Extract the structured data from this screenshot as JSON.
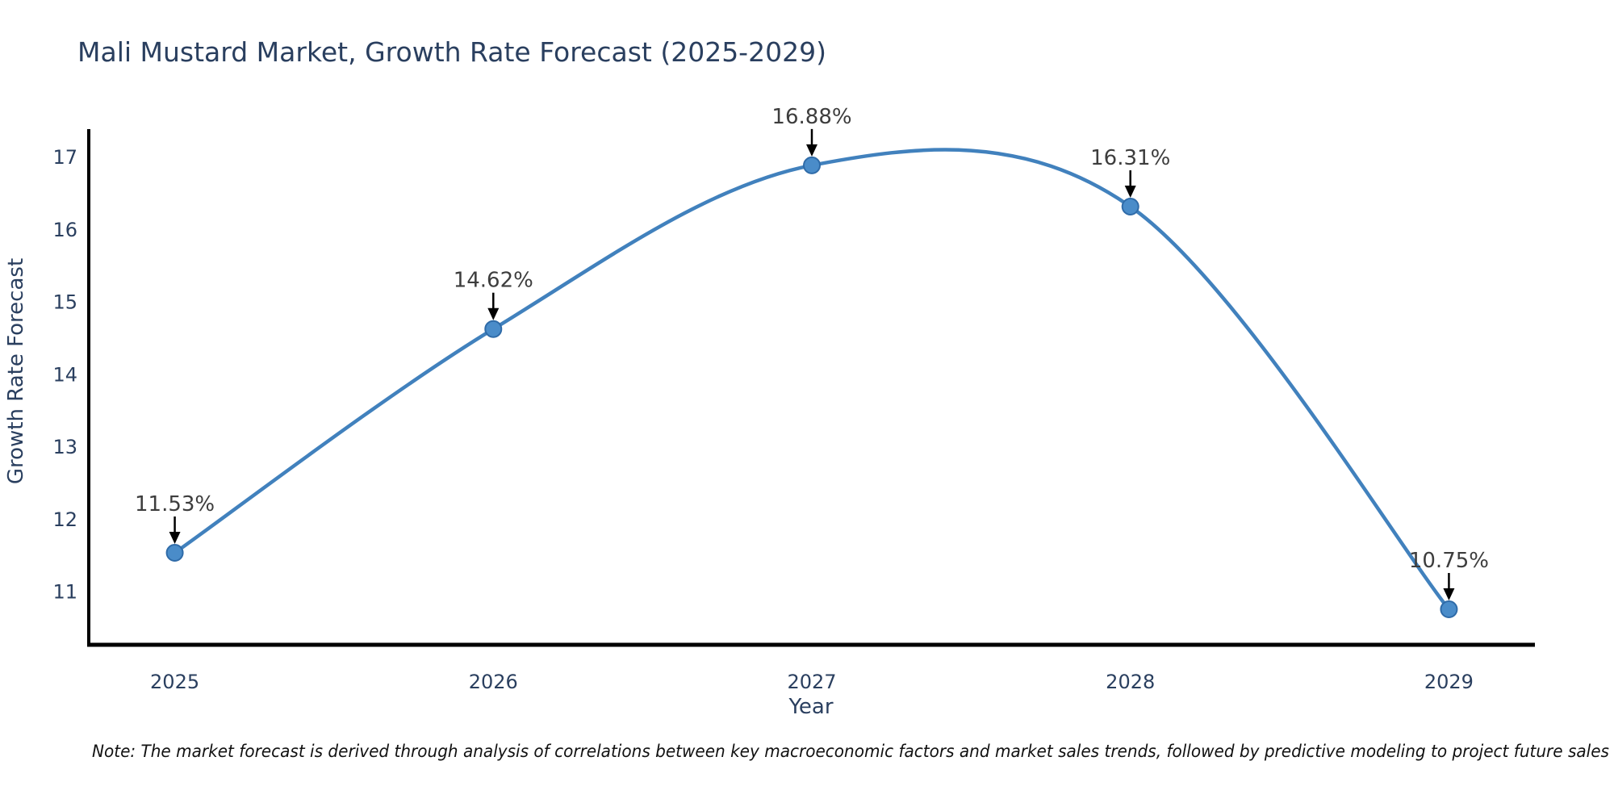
{
  "chart_data": {
    "type": "line",
    "line_shape": "spline",
    "title": "Mali Mustard Market, Growth Rate Forecast (2025-2029)",
    "xlabel": "Year",
    "ylabel": "Growth Rate Forecast",
    "note": "Note: The market forecast is derived through analysis of correlations between key macroeconomic factors and market sales trends, followed by predictive modeling to project future sales",
    "categories": [
      2025,
      2026,
      2027,
      2028,
      2029
    ],
    "values": [
      11.53,
      14.62,
      16.88,
      16.31,
      10.75
    ],
    "point_labels": [
      "11.53%",
      "14.62%",
      "16.88%",
      "16.31%",
      "10.75%"
    ],
    "x_ticks": [
      "2025",
      "2026",
      "2027",
      "2028",
      "2029"
    ],
    "y_ticks": [
      11,
      12,
      13,
      14,
      15,
      16,
      17
    ],
    "xlim": [
      2024.73,
      2029.27
    ],
    "ylim": [
      10.26,
      17.38
    ],
    "grid": false,
    "legend": "none",
    "colors": {
      "line": "#4181bd",
      "marker_fill": "#4a8cc9",
      "marker_edge": "#2f6ba8",
      "axis_line": "#000000",
      "title_text": "#2a3f5f",
      "tick_text": "#2a3f5f",
      "annotation_text": "#3d3d3d",
      "annotation_arrow": "#000000",
      "note_text": "#111111"
    }
  }
}
